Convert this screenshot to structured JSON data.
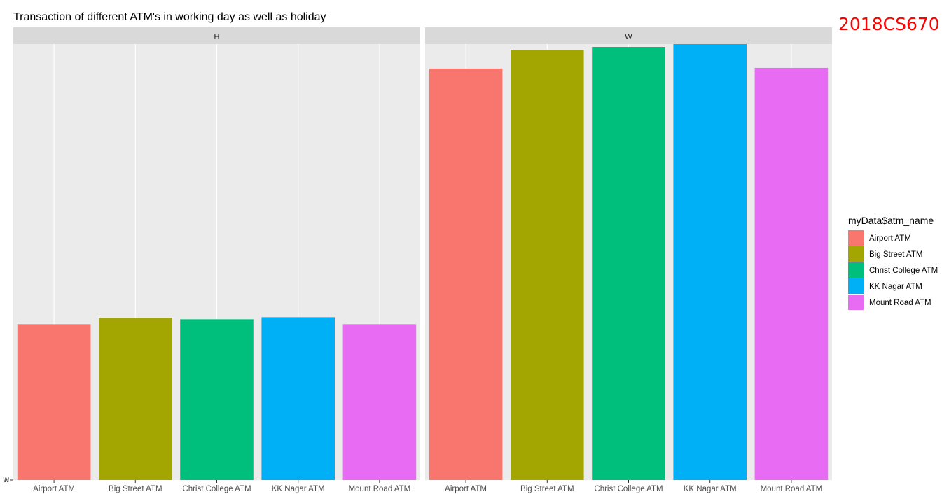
{
  "chart_data": {
    "type": "bar",
    "title": "Transaction of different ATM's in working day as well as holiday",
    "watermark": "2018CS670",
    "categories": [
      "Airport ATM",
      "Big Street ATM",
      "Christ College ATM",
      "KK Nagar ATM",
      "Mount Road ATM"
    ],
    "facets": [
      {
        "label": "H",
        "values": [
          223,
          232,
          230,
          233,
          223
        ]
      },
      {
        "label": "W",
        "values": [
          589,
          616,
          620,
          624,
          590
        ]
      }
    ],
    "y_tick_labels": [
      "H",
      "W"
    ],
    "ylim": [
      0,
      624
    ],
    "legend": {
      "title": "myData$atm_name",
      "placement": "right",
      "items": [
        "Airport ATM",
        "Big Street ATM",
        "Christ College ATM",
        "KK Nagar ATM",
        "Mount Road ATM"
      ]
    },
    "colors": [
      "#F8766D",
      "#A3A500",
      "#00BF7D",
      "#00B0F6",
      "#E76BF3"
    ],
    "panel_background": "#EBEBEB",
    "strip_background": "#D9D9D9",
    "grid": true
  }
}
